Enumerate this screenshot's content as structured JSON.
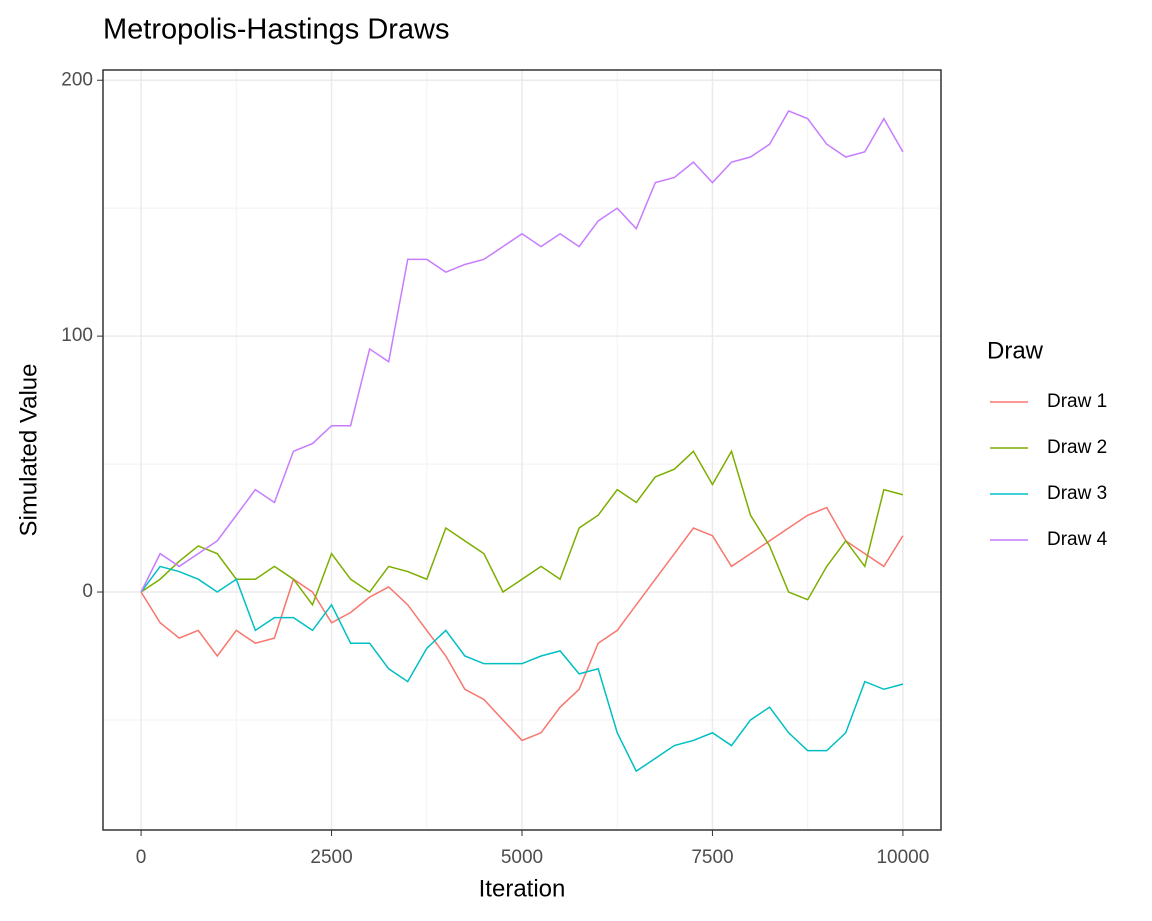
{
  "chart_data": {
    "type": "line",
    "title": "Metropolis-Hastings Draws",
    "x_label": "Iteration",
    "y_label": "Simulated Value",
    "legend_title": "Draw",
    "legend_position": "right",
    "x": [
      0,
      250,
      500,
      750,
      1000,
      1250,
      1500,
      1750,
      2000,
      2250,
      2500,
      2750,
      3000,
      3250,
      3500,
      3750,
      4000,
      4250,
      4500,
      4750,
      5000,
      5250,
      5500,
      5750,
      6000,
      6250,
      6500,
      6750,
      7000,
      7250,
      7500,
      7750,
      8000,
      8250,
      8500,
      8750,
      9000,
      9250,
      9500,
      9750,
      10000
    ],
    "series": [
      {
        "name": "Draw 1",
        "color": "#F8766D",
        "values": [
          0,
          -12,
          -18,
          -15,
          -25,
          -15,
          -20,
          -18,
          5,
          0,
          -12,
          -8,
          -2,
          2,
          -5,
          -15,
          -25,
          -38,
          -42,
          -50,
          -58,
          -55,
          -45,
          -38,
          -20,
          -15,
          -5,
          5,
          15,
          25,
          22,
          10,
          15,
          20,
          25,
          30,
          33,
          20,
          15,
          10,
          22
        ]
      },
      {
        "name": "Draw 2",
        "color": "#7CAE00",
        "values": [
          0,
          5,
          12,
          18,
          15,
          5,
          5,
          10,
          5,
          -5,
          15,
          5,
          0,
          10,
          8,
          5,
          25,
          20,
          15,
          0,
          5,
          10,
          5,
          25,
          30,
          40,
          35,
          45,
          48,
          55,
          42,
          55,
          30,
          18,
          0,
          -3,
          10,
          20,
          10,
          40,
          38
        ]
      },
      {
        "name": "Draw 3",
        "color": "#00BFC4",
        "values": [
          0,
          10,
          8,
          5,
          0,
          5,
          -15,
          -10,
          -10,
          -15,
          -5,
          -20,
          -20,
          -30,
          -35,
          -22,
          -15,
          -25,
          -28,
          -28,
          -28,
          -25,
          -23,
          -32,
          -30,
          -55,
          -70,
          -65,
          -60,
          -58,
          -55,
          -60,
          -50,
          -45,
          -55,
          -62,
          -62,
          -55,
          -35,
          -38,
          -36
        ]
      },
      {
        "name": "Draw 4",
        "color": "#C77CFF",
        "values": [
          0,
          15,
          10,
          15,
          20,
          30,
          40,
          35,
          55,
          58,
          65,
          65,
          95,
          90,
          130,
          130,
          125,
          128,
          130,
          135,
          140,
          135,
          140,
          135,
          145,
          150,
          142,
          160,
          162,
          168,
          160,
          168,
          170,
          175,
          188,
          185,
          175,
          170,
          172,
          185,
          172
        ]
      }
    ],
    "xlim": [
      -500,
      10500
    ],
    "xticks": [
      0,
      2500,
      5000,
      7500,
      10000
    ],
    "x_minor_ticks": [
      1250,
      3750,
      6250,
      8750
    ],
    "ylim": [
      -93,
      204
    ],
    "yticks": [
      0,
      100,
      200
    ],
    "y_minor_ticks": [
      -50,
      50,
      150
    ],
    "grid": true
  }
}
